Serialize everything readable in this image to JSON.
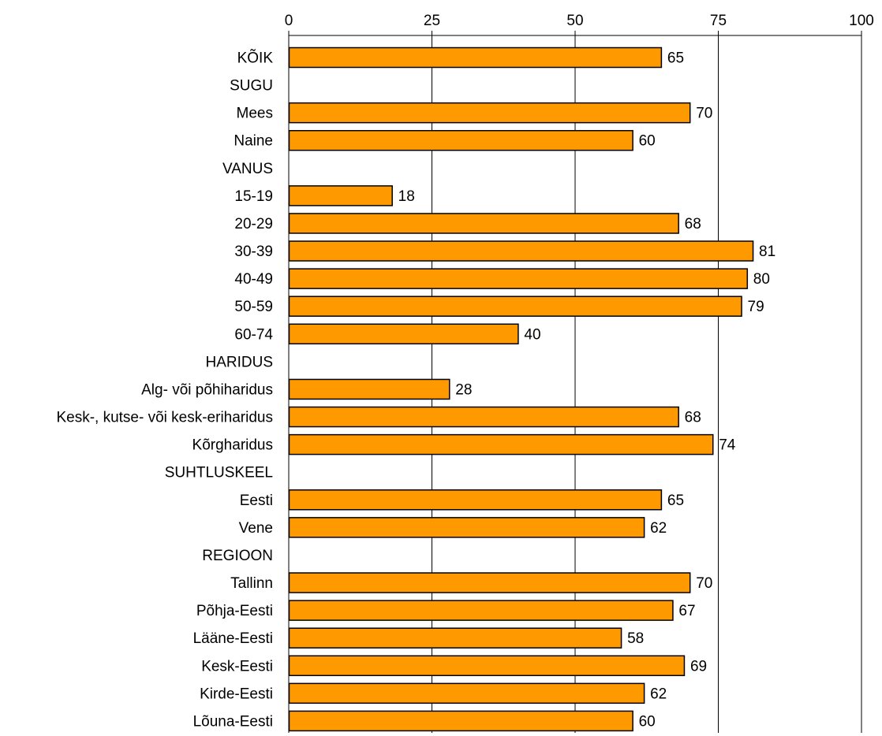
{
  "chart_data": {
    "type": "bar",
    "orientation": "horizontal",
    "title": "",
    "xlabel": "",
    "ylabel": "",
    "xlim": [
      0,
      100
    ],
    "xticks": [
      0,
      25,
      50,
      75,
      100
    ],
    "xtick_labels": [
      "0",
      "25",
      "50",
      "75",
      "100"
    ],
    "axis_position": "top",
    "grid": true,
    "legend": "none",
    "bar_color": "#FF9900",
    "bar_edge_color": "#000000",
    "categories": [
      "KÕIK",
      "SUGU",
      "Mees",
      "Naine",
      "VANUS",
      "15-19",
      "20-29",
      "30-39",
      "40-49",
      "50-59",
      "60-74",
      "HARIDUS",
      "Alg- või põhiharidus",
      "Kesk-, kutse- või kesk-eriharidus",
      "Kõrgharidus",
      "SUHTLUSKEEL",
      "Eesti",
      "Vene",
      "REGIOON",
      "Tallinn",
      "Põhja-Eesti",
      "Lääne-Eesti",
      "Kesk-Eesti",
      "Kirde-Eesti",
      "Lõuna-Eesti"
    ],
    "values": [
      65,
      null,
      70,
      60,
      null,
      18,
      68,
      81,
      80,
      79,
      40,
      null,
      28,
      68,
      74,
      null,
      65,
      62,
      null,
      70,
      67,
      58,
      69,
      62,
      60
    ],
    "value_labels": [
      "65",
      "",
      "70",
      "60",
      "",
      "18",
      "68",
      "81",
      "80",
      "79",
      "40",
      "",
      "28",
      "68",
      "74",
      "",
      "65",
      "62",
      "",
      "70",
      "67",
      "58",
      "69",
      "62",
      "60"
    ]
  }
}
